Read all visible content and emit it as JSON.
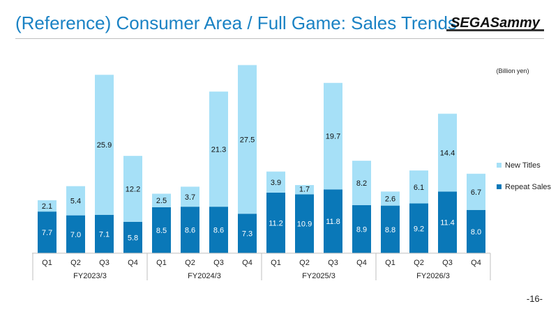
{
  "title": "(Reference) Consumer Area / Full Game: Sales Trends",
  "logo_text": "SEGASammy",
  "unit_label": "(Billion yen)",
  "page_number": "-16-",
  "colors": {
    "title": "#1a82c4",
    "repeat_sales": "#0a78b8",
    "new_titles": "#a6e0f7"
  },
  "chart_data": {
    "type": "bar",
    "stacked": true,
    "categories": [
      "Q1",
      "Q2",
      "Q3",
      "Q4",
      "Q1",
      "Q2",
      "Q3",
      "Q4",
      "Q1",
      "Q2",
      "Q3",
      "Q4",
      "Q1",
      "Q2",
      "Q3",
      "Q4"
    ],
    "groups": [
      {
        "label": "FY2023/3",
        "quarters": 4
      },
      {
        "label": "FY2024/3",
        "quarters": 4
      },
      {
        "label": "FY2025/3",
        "quarters": 4
      },
      {
        "label": "FY2026/3",
        "quarters": 4
      }
    ],
    "series": [
      {
        "name": "Repeat Sales",
        "color": "#0a78b8",
        "values": [
          7.7,
          7.0,
          7.1,
          5.8,
          8.5,
          8.6,
          8.6,
          7.3,
          11.2,
          10.9,
          11.8,
          8.9,
          8.8,
          9.2,
          11.4,
          8.0
        ]
      },
      {
        "name": "New Titles",
        "color": "#a6e0f7",
        "values": [
          2.1,
          5.4,
          25.9,
          12.2,
          2.5,
          3.7,
          21.3,
          27.5,
          3.9,
          1.7,
          19.7,
          8.2,
          2.6,
          6.1,
          14.4,
          6.7
        ]
      }
    ],
    "ylim": [
      0,
      35
    ],
    "legend_position": "right",
    "grid": false
  }
}
